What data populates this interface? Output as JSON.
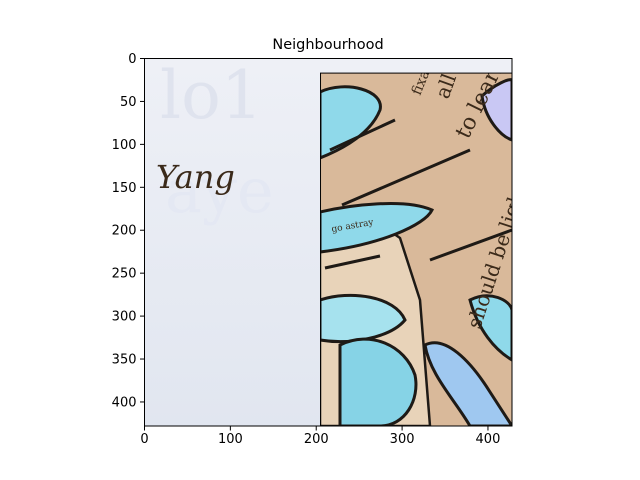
{
  "chart_data": {
    "type": "image",
    "title": "Neighbourhood",
    "xlabel": "",
    "ylabel": "",
    "xlim": [
      0,
      428
    ],
    "ylim": [
      428,
      0
    ],
    "x_ticks": [
      0,
      100,
      200,
      300,
      400
    ],
    "y_ticks": [
      0,
      50,
      100,
      150,
      200,
      250,
      300,
      350,
      400
    ],
    "grid": false,
    "inset_region": {
      "x0": 205,
      "y0": 17,
      "x1": 428,
      "y1": 428
    },
    "image_text": {
      "left_word": "Yang",
      "collage_fragments": [
        "to learn from",
        "should be light",
        "go astray",
        "all to",
        "fixable. And"
      ]
    },
    "colors": {
      "left_background": "#e3e7f1",
      "collage_paper": "#d9b99a",
      "collage_cyan": "#8fd9ea",
      "collage_outline": "#1e1a16",
      "collage_text": "#8a4a24",
      "frame": "#000000"
    }
  }
}
